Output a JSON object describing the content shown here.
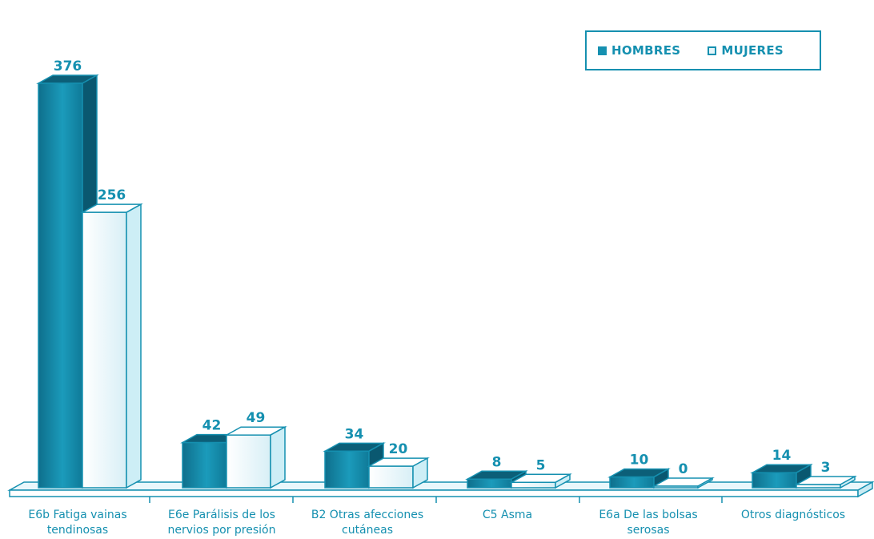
{
  "chart_data": {
    "type": "bar",
    "categories": [
      [
        "E6b Fatiga vainas",
        "tendinosas"
      ],
      [
        "E6e Parálisis de los",
        "nervios por presión"
      ],
      [
        "B2 Otras afecciones",
        "cutáneas"
      ],
      [
        "C5 Asma"
      ],
      [
        "E6a De las bolsas",
        "serosas"
      ],
      [
        "Otros diagnósticos"
      ]
    ],
    "series": [
      {
        "name": "HOMBRES",
        "values": [
          376,
          42,
          34,
          8,
          10,
          14
        ],
        "color": "#1590b0"
      },
      {
        "name": "MUJERES",
        "values": [
          256,
          49,
          20,
          5,
          0,
          3
        ],
        "color": "#e6f6fa"
      }
    ],
    "ylim": [
      0,
      376
    ],
    "grid": false,
    "legend_position": "top-right",
    "style": "3d-bars",
    "accent_color": "#1590b0"
  }
}
